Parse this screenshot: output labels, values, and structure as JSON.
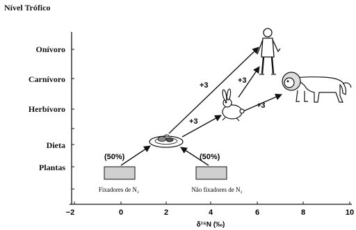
{
  "header": {
    "title": "Nível Trófico"
  },
  "levels": [
    "Onívoro",
    "Carnívoro",
    "Herbívoro",
    "Dieta",
    "Plantas"
  ],
  "axis": {
    "x_ticks": [
      "−2",
      "0",
      "2",
      "4",
      "6",
      "8",
      "10"
    ],
    "x_label": "δ¹⁵N (‰)"
  },
  "sources": {
    "fixers_label": "Fixadores de N₂",
    "fixers_pct": "(50%)",
    "nonfixers_label": "Não fixadores de N₂",
    "nonfixers_pct": "(50%)"
  },
  "steps": {
    "diet_to_human": "+3",
    "diet_to_rabbit": "+3",
    "rabbit_to_human": "+3",
    "rabbit_to_lion": "+3"
  },
  "icons": {
    "human": "human-icon",
    "lion": "lion-icon",
    "rabbit": "rabbit-icon",
    "diet": "food-plate-icon"
  },
  "colors": {
    "line": "#111111",
    "box_fill": "#d0d0d0"
  }
}
